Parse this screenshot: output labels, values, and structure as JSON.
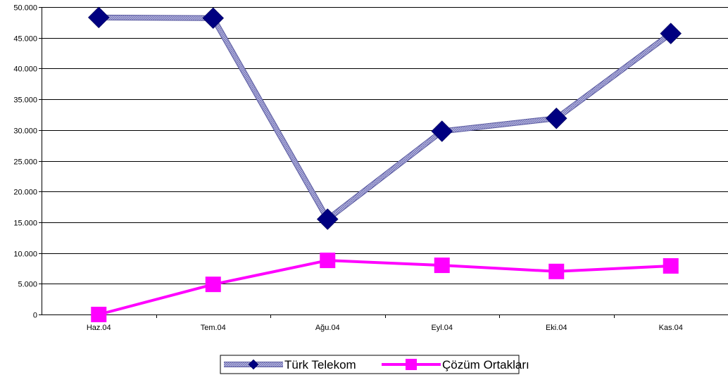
{
  "chart_data": {
    "type": "line",
    "categories": [
      "Haz.04",
      "Tem.04",
      "Ağu.04",
      "Eyl.04",
      "Eki.04",
      "Kas.04"
    ],
    "ylim": [
      0,
      50000
    ],
    "yticks": [
      0,
      5000,
      10000,
      15000,
      20000,
      25000,
      30000,
      35000,
      40000,
      45000,
      50000
    ],
    "ytick_labels": [
      "0",
      "5.000",
      "10.000",
      "15.000",
      "20.000",
      "25.000",
      "30.000",
      "35.000",
      "40.000",
      "45.000",
      "50.000"
    ],
    "grid": true,
    "legend_position": "bottom",
    "series": [
      {
        "name": "Türk Telekom",
        "values": [
          48300,
          48200,
          15500,
          29800,
          31900,
          45700
        ],
        "line_color": "#8f8fc4",
        "marker": "diamond",
        "marker_color": "#000080"
      },
      {
        "name": "Çözüm Ortakları",
        "values": [
          0,
          4900,
          8800,
          8000,
          7000,
          7900
        ],
        "line_color": "#ff00ff",
        "marker": "square",
        "marker_color": "#ff00ff"
      }
    ]
  }
}
